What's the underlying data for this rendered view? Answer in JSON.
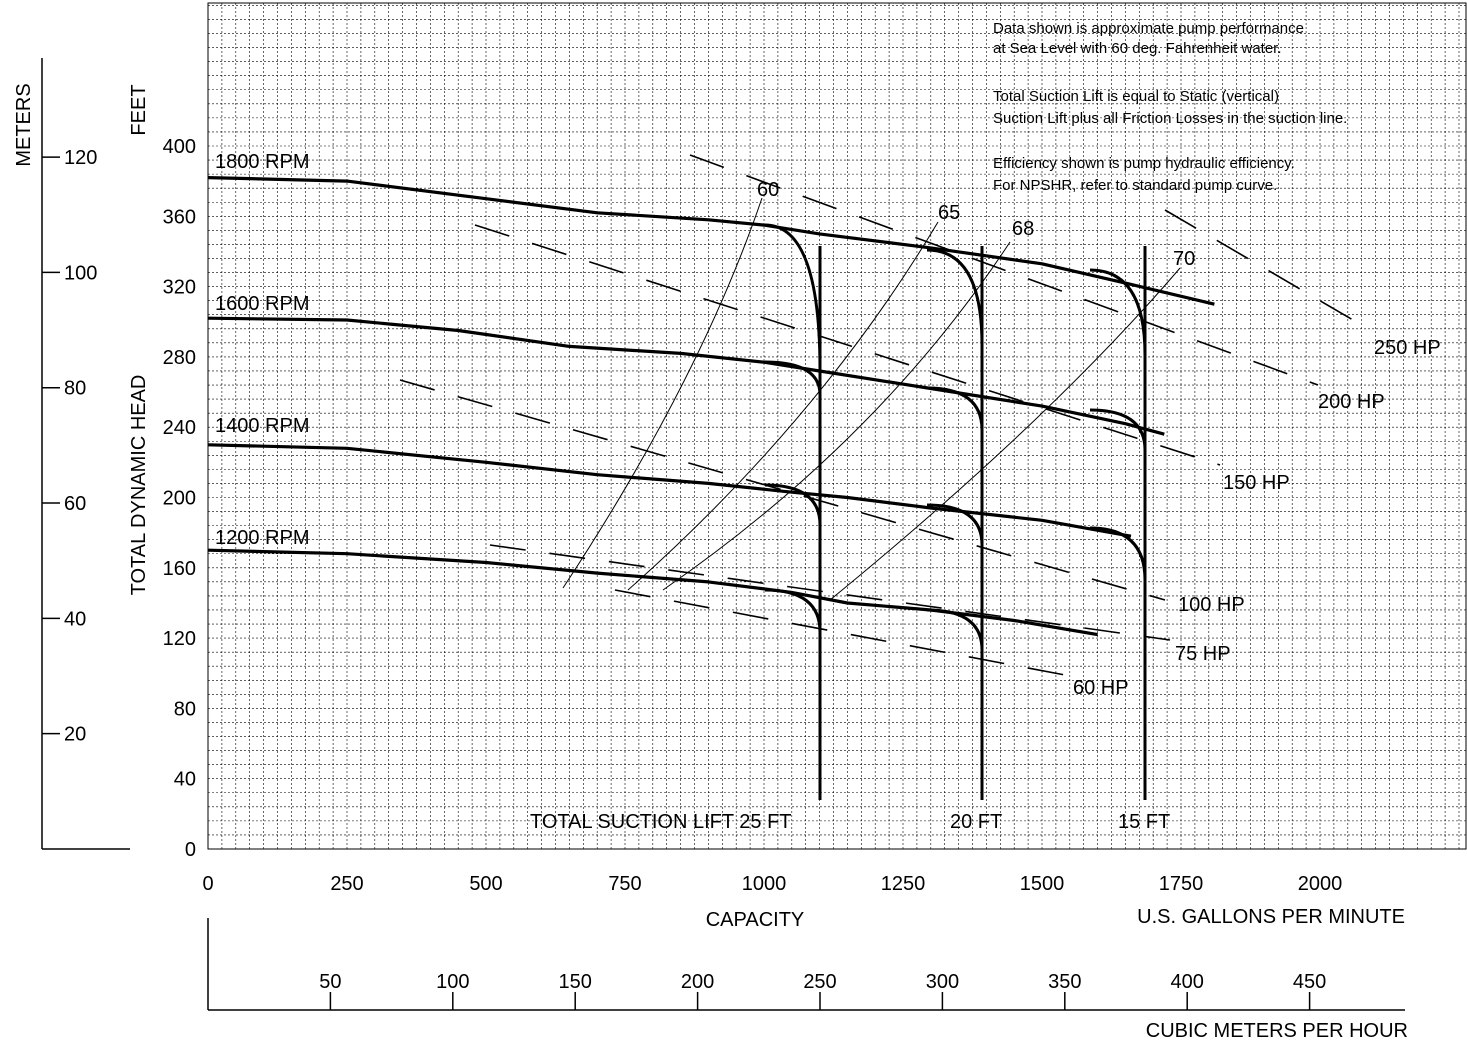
{
  "chart_data": {
    "type": "line",
    "notes": [
      "Data shown is approximate pump performance",
      "at Sea Level with 60 deg. Fahrenheit water.",
      "Total Suction Lift is equal to Static (vertical)",
      "Suction Lift plus all Friction Losses in the suction line.",
      "Efficiency shown is pump hydraulic efficiency.",
      "For NPSHR, refer to standard pump curve."
    ],
    "x_axis": {
      "label": "CAPACITY",
      "unit_label": "U.S. GALLONS PER MINUTE",
      "range": [
        0,
        2250
      ],
      "ticks": [
        "0",
        "250",
        "500",
        "750",
        "1000",
        "1250",
        "1500",
        "1750",
        "2000"
      ]
    },
    "y_axis": {
      "label": "TOTAL DYNAMIC HEAD",
      "unit_label": "FEET",
      "range": [
        0,
        480
      ],
      "ticks": [
        "0",
        "40",
        "80",
        "120",
        "160",
        "200",
        "240",
        "280",
        "320",
        "360",
        "400"
      ]
    },
    "secondary_x_axis": {
      "unit_label": "CUBIC METERS PER HOUR",
      "ticks": [
        "50",
        "100",
        "150",
        "200",
        "250",
        "300",
        "350",
        "400",
        "450"
      ]
    },
    "secondary_y_axis": {
      "unit_label": "METERS",
      "ticks": [
        "20",
        "40",
        "60",
        "80",
        "100",
        "120"
      ]
    },
    "grid": true,
    "series": [
      {
        "name": "1800 RPM",
        "x": [
          0,
          250,
          500,
          700,
          900,
          1000,
          1100,
          1300,
          1500,
          1650,
          1810
        ],
        "y": [
          382,
          380,
          370,
          362,
          358,
          355,
          350,
          342,
          333,
          322,
          310
        ]
      },
      {
        "name": "1600 RPM",
        "x": [
          0,
          250,
          450,
          650,
          850,
          1000,
          1100,
          1300,
          1500,
          1650,
          1720
        ],
        "y": [
          302,
          301,
          295,
          286,
          282,
          277,
          272,
          262,
          252,
          242,
          236
        ]
      },
      {
        "name": "1400 RPM",
        "x": [
          0,
          250,
          500,
          700,
          900,
          1050,
          1150,
          1300,
          1500,
          1660
        ],
        "y": [
          230,
          228,
          220,
          213,
          208,
          203,
          200,
          194,
          187,
          178
        ]
      },
      {
        "name": "1200 RPM",
        "x": [
          0,
          250,
          500,
          700,
          900,
          1050,
          1150,
          1300,
          1450,
          1600
        ],
        "y": [
          170,
          168,
          163,
          157,
          152,
          146,
          140,
          136,
          130,
          122
        ]
      }
    ],
    "suction_lift_curves": [
      {
        "name": "TOTAL SUCTION LIFT 25 FT",
        "x": 1090
      },
      {
        "name": "20 FT",
        "x": 1380
      },
      {
        "name": "15 FT",
        "x": 1670
      }
    ],
    "efficiency_lines": [
      "60",
      "65",
      "68",
      "70"
    ],
    "hp_lines": [
      "250 HP",
      "200 HP",
      "150 HP",
      "100 HP",
      "75 HP",
      "60 HP"
    ]
  }
}
